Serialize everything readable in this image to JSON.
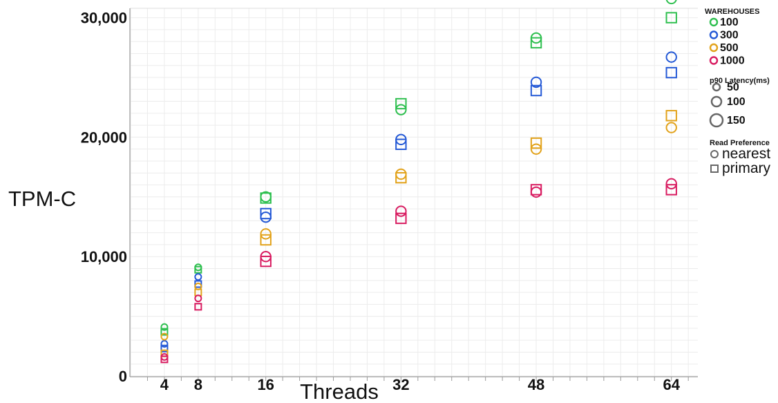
{
  "chart_data": {
    "type": "scatter",
    "xlabel": "Threads",
    "ylabel": "TPM-C",
    "x_ticks": [
      4,
      8,
      16,
      32,
      48,
      64
    ],
    "y_ticks": [
      0,
      10000,
      20000,
      30000
    ],
    "y_tick_labels": [
      "0",
      "10,000",
      "20,000",
      "30,000"
    ],
    "xlim": [
      0,
      68
    ],
    "ylim": [
      0,
      32200
    ],
    "grid": true,
    "legend": {
      "placement": "right",
      "color_title": "WAREHOUSES",
      "colors": [
        {
          "label": "100",
          "color": "#2ebf4f"
        },
        {
          "label": "300",
          "color": "#2459d6"
        },
        {
          "label": "500",
          "color": "#e2a21a"
        },
        {
          "label": "1000",
          "color": "#d81b60"
        }
      ],
      "size_title": "p90 Latency(ms)",
      "sizes": [
        {
          "label": "50",
          "value": 50
        },
        {
          "label": "100",
          "value": 100
        },
        {
          "label": "150",
          "value": 150
        }
      ],
      "shape_title": "Read Preference",
      "shapes": [
        {
          "label": "nearest",
          "shape": "circle"
        },
        {
          "label": "primary",
          "shape": "square"
        }
      ]
    },
    "series": [
      {
        "warehouses": "100",
        "read_preference": "nearest",
        "points": [
          {
            "x": 4,
            "y": 4100
          },
          {
            "x": 8,
            "y": 9100
          },
          {
            "x": 16,
            "y": 15000
          },
          {
            "x": 32,
            "y": 22300
          },
          {
            "x": 48,
            "y": 28300
          },
          {
            "x": 64,
            "y": 31600
          }
        ]
      },
      {
        "warehouses": "100",
        "read_preference": "primary",
        "points": [
          {
            "x": 4,
            "y": 3700
          },
          {
            "x": 8,
            "y": 8900
          },
          {
            "x": 16,
            "y": 14900
          },
          {
            "x": 32,
            "y": 22800
          },
          {
            "x": 48,
            "y": 27900
          },
          {
            "x": 64,
            "y": 30000
          }
        ]
      },
      {
        "warehouses": "300",
        "read_preference": "nearest",
        "points": [
          {
            "x": 4,
            "y": 2700
          },
          {
            "x": 8,
            "y": 8300
          },
          {
            "x": 16,
            "y": 13300
          },
          {
            "x": 32,
            "y": 19800
          },
          {
            "x": 48,
            "y": 24600
          },
          {
            "x": 64,
            "y": 26700
          }
        ]
      },
      {
        "warehouses": "300",
        "read_preference": "primary",
        "points": [
          {
            "x": 4,
            "y": 2300
          },
          {
            "x": 8,
            "y": 7700
          },
          {
            "x": 16,
            "y": 13600
          },
          {
            "x": 32,
            "y": 19400
          },
          {
            "x": 48,
            "y": 23900
          },
          {
            "x": 64,
            "y": 25400
          }
        ]
      },
      {
        "warehouses": "500",
        "read_preference": "nearest",
        "points": [
          {
            "x": 4,
            "y": 3300
          },
          {
            "x": 8,
            "y": 7500
          },
          {
            "x": 16,
            "y": 11900
          },
          {
            "x": 32,
            "y": 16900
          },
          {
            "x": 48,
            "y": 19000
          },
          {
            "x": 64,
            "y": 20800
          }
        ]
      },
      {
        "warehouses": "500",
        "read_preference": "primary",
        "points": [
          {
            "x": 4,
            "y": 1900
          },
          {
            "x": 8,
            "y": 7000
          },
          {
            "x": 16,
            "y": 11400
          },
          {
            "x": 32,
            "y": 16600
          },
          {
            "x": 48,
            "y": 19500
          },
          {
            "x": 64,
            "y": 21800
          }
        ]
      },
      {
        "warehouses": "1000",
        "read_preference": "nearest",
        "points": [
          {
            "x": 4,
            "y": 1600
          },
          {
            "x": 8,
            "y": 6500
          },
          {
            "x": 16,
            "y": 10000
          },
          {
            "x": 32,
            "y": 13800
          },
          {
            "x": 48,
            "y": 15400
          },
          {
            "x": 64,
            "y": 16100
          }
        ]
      },
      {
        "warehouses": "1000",
        "read_preference": "primary",
        "points": [
          {
            "x": 4,
            "y": 1400
          },
          {
            "x": 8,
            "y": 5800
          },
          {
            "x": 16,
            "y": 9600
          },
          {
            "x": 32,
            "y": 13200
          },
          {
            "x": 48,
            "y": 15600
          },
          {
            "x": 64,
            "y": 15600
          }
        ]
      }
    ]
  }
}
